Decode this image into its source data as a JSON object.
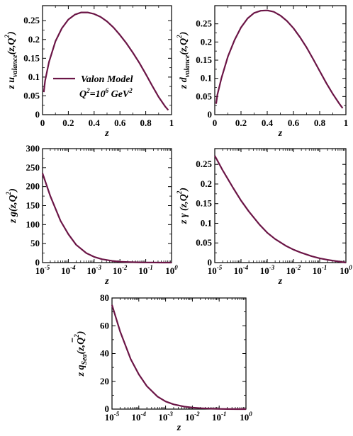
{
  "chart_data": [
    {
      "type": "line",
      "xscale": "linear",
      "xlim": [
        0,
        1
      ],
      "ylim": [
        0,
        0.29
      ],
      "xticks": [
        "0",
        "0.2",
        "0.4",
        "0.6",
        "0.8",
        "1"
      ],
      "yticks": [
        "0",
        "0.05",
        "0.1",
        "0.15",
        "0.2",
        "0.25"
      ],
      "xlabel": "z",
      "ylabel": {
        "main": "z u",
        "sub": "valance",
        "tail": "(z,Q",
        "sup": "2",
        "end": ")"
      },
      "color": "#6b1546",
      "series": [
        {
          "x": [
            0.01,
            0.02,
            0.05,
            0.1,
            0.15,
            0.2,
            0.25,
            0.3,
            0.35,
            0.4,
            0.45,
            0.5,
            0.55,
            0.6,
            0.65,
            0.7,
            0.75,
            0.8,
            0.85,
            0.9,
            0.95,
            0.975
          ],
          "y": [
            0.06,
            0.09,
            0.14,
            0.195,
            0.23,
            0.253,
            0.266,
            0.272,
            0.272,
            0.268,
            0.26,
            0.248,
            0.232,
            0.212,
            0.19,
            0.165,
            0.138,
            0.108,
            0.077,
            0.047,
            0.022,
            0.012
          ]
        }
      ],
      "legend": {
        "position": "center-left",
        "label": "Valon Model",
        "note": {
          "main": "Q",
          "sup1": "2",
          "mid": "=10",
          "sup2": "6",
          "tail": " GeV",
          "sup3": "2"
        }
      }
    },
    {
      "type": "line",
      "xscale": "linear",
      "xlim": [
        0,
        1
      ],
      "ylim": [
        0,
        0.3
      ],
      "xticks": [
        "0",
        "0.2",
        "0.4",
        "0.6",
        "0.8",
        "1"
      ],
      "yticks": [
        "0",
        "0.05",
        "0.1",
        "0.15",
        "0.2",
        "0.25"
      ],
      "xlabel": "z",
      "ylabel": {
        "main": "z d",
        "sub": "valance",
        "tail": "(z,Q",
        "sup": "2",
        "end": ")"
      },
      "color": "#6b1546",
      "series": [
        {
          "x": [
            0.01,
            0.02,
            0.05,
            0.1,
            0.15,
            0.2,
            0.25,
            0.3,
            0.35,
            0.4,
            0.45,
            0.5,
            0.55,
            0.6,
            0.65,
            0.7,
            0.75,
            0.8,
            0.85,
            0.9,
            0.95,
            0.975
          ],
          "y": [
            0.03,
            0.055,
            0.1,
            0.16,
            0.205,
            0.24,
            0.265,
            0.28,
            0.286,
            0.287,
            0.283,
            0.273,
            0.258,
            0.238,
            0.213,
            0.185,
            0.153,
            0.12,
            0.087,
            0.057,
            0.03,
            0.018
          ]
        }
      ]
    },
    {
      "type": "line",
      "xscale": "log",
      "xlim": [
        -5,
        0
      ],
      "ylim": [
        0,
        300
      ],
      "xticks": [
        "-5",
        "-4",
        "-3",
        "-2",
        "-1",
        "0"
      ],
      "yticks": [
        "0",
        "50",
        "100",
        "150",
        "200",
        "250",
        "300"
      ],
      "xlabel": "z",
      "ylabel": {
        "main": "z g",
        "sub": "",
        "tail": "(z,Q",
        "sup": "2",
        "end": ")"
      },
      "color": "#6b1546",
      "series": [
        {
          "x": [
            1e-05,
            2e-05,
            5e-05,
            0.0001,
            0.0002,
            0.0005,
            0.001,
            0.002,
            0.005,
            0.01,
            0.02,
            0.05,
            0.1,
            0.2,
            0.5,
            1
          ],
          "y": [
            235,
            175,
            110,
            75,
            47,
            25,
            15,
            9,
            4.5,
            2.5,
            1.5,
            0.7,
            0.35,
            0.15,
            0.03,
            0
          ]
        }
      ]
    },
    {
      "type": "line",
      "xscale": "log",
      "xlim": [
        -5,
        0
      ],
      "ylim": [
        0,
        0.29
      ],
      "xticks": [
        "-5",
        "-4",
        "-3",
        "-2",
        "-1",
        "0"
      ],
      "yticks": [
        "0",
        "0.05",
        "0.1",
        "0.15",
        "0.2",
        "0.25"
      ],
      "xlabel": "z",
      "ylabel": {
        "main": "z γ",
        "sub": "",
        "tail": " (z,Q",
        "sup": "2",
        "end": ")"
      },
      "color": "#6b1546",
      "series": [
        {
          "x": [
            1e-05,
            2e-05,
            5e-05,
            0.0001,
            0.0002,
            0.0005,
            0.001,
            0.002,
            0.005,
            0.01,
            0.02,
            0.05,
            0.1,
            0.2,
            0.5,
            1
          ],
          "y": [
            0.272,
            0.235,
            0.19,
            0.158,
            0.13,
            0.097,
            0.076,
            0.06,
            0.043,
            0.033,
            0.025,
            0.016,
            0.011,
            0.007,
            0.003,
            0.0
          ]
        }
      ]
    },
    {
      "type": "line",
      "xscale": "log",
      "xlim": [
        -5,
        0
      ],
      "ylim": [
        0,
        80
      ],
      "xticks": [
        "-5",
        "-4",
        "-3",
        "-2",
        "-1",
        "0"
      ],
      "yticks": [
        "0",
        "20",
        "40",
        "60",
        "80"
      ],
      "xlabel": "z",
      "ylabel": {
        "main": "z q",
        "sub": "Sea",
        "tail": "(z,Q",
        "sup": "2",
        "end": ")"
      },
      "color": "#6b1546",
      "series": [
        {
          "x": [
            1e-05,
            2e-05,
            5e-05,
            0.0001,
            0.0002,
            0.0005,
            0.001,
            0.002,
            0.005,
            0.01,
            0.02,
            0.05,
            0.1,
            0.2,
            0.5,
            1
          ],
          "y": [
            75,
            56,
            36,
            25,
            16.5,
            9,
            5.5,
            3.4,
            1.8,
            1.1,
            0.65,
            0.3,
            0.15,
            0.07,
            0.02,
            0
          ]
        }
      ]
    }
  ]
}
